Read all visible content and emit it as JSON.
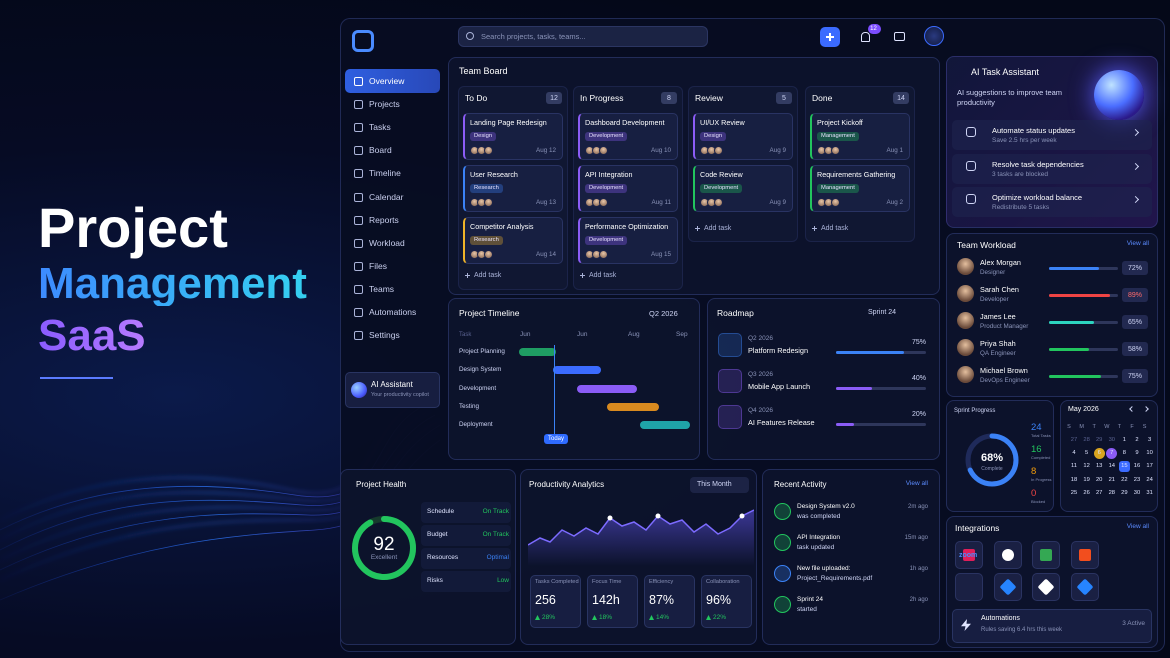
{
  "hero": {
    "line1": "Project",
    "line2": "Management",
    "line3": "SaaS"
  },
  "sidebar": {
    "nav": [
      "Overview",
      "Projects",
      "Tasks",
      "Board",
      "Timeline",
      "Calendar",
      "Reports",
      "Workload",
      "Files",
      "Teams",
      "Automations",
      "Settings"
    ],
    "assistant": {
      "title": "AI Assistant",
      "subtitle": "Your productivity copilot"
    }
  },
  "topbar": {
    "search": "Search projects, tasks, teams...",
    "notifications": "12"
  },
  "board": {
    "title": "Team Board",
    "columns": [
      {
        "title": "To Do",
        "count": "12",
        "add": "Add task",
        "cards": [
          {
            "title": "Landing Page Redesign",
            "tag": "Design",
            "date": "Aug 12",
            "color": "#8b5cf6"
          },
          {
            "title": "User Research",
            "tag": "Research",
            "date": "Aug 13",
            "color": "#3b82f6"
          },
          {
            "title": "Competitor Analysis",
            "tag": "Research",
            "date": "Aug 14",
            "color": "#f0b429"
          }
        ]
      },
      {
        "title": "In Progress",
        "count": "8",
        "add": "Add task",
        "cards": [
          {
            "title": "Dashboard Development",
            "tag": "Development",
            "date": "Aug 10",
            "color": "#8b5cf6"
          },
          {
            "title": "API Integration",
            "tag": "Development",
            "date": "Aug 11",
            "color": "#8b5cf6"
          },
          {
            "title": "Performance Optimization",
            "tag": "Development",
            "date": "Aug 15",
            "color": "#8b5cf6"
          }
        ]
      },
      {
        "title": "Review",
        "count": "5",
        "add": "Add task",
        "cards": [
          {
            "title": "UI/UX Review",
            "tag": "Design",
            "date": "Aug 9",
            "color": "#8b5cf6"
          },
          {
            "title": "Code Review",
            "tag": "Development",
            "date": "Aug 9",
            "color": "#22c55e"
          }
        ]
      },
      {
        "title": "Done",
        "count": "14",
        "add": "Add task",
        "cards": [
          {
            "title": "Project Kickoff",
            "tag": "Management",
            "date": "Aug 1",
            "color": "#22c55e"
          },
          {
            "title": "Requirements Gathering",
            "tag": "Management",
            "date": "Aug 2",
            "color": "#22c55e"
          }
        ]
      }
    ]
  },
  "timeline": {
    "title": "Project Timeline",
    "period": "Q2 2026",
    "task_header": "Task",
    "months": [
      "Jun",
      "Jun",
      "Aug",
      "Sep"
    ],
    "rows": [
      "Project Planning",
      "Design System",
      "Development",
      "Testing",
      "Deployment"
    ],
    "today": "Today"
  },
  "roadmap": {
    "title": "Roadmap",
    "sprint": "Sprint 24",
    "items": [
      {
        "quarter": "Q2 2026",
        "name": "Platform Redesign",
        "progress": "75%",
        "color": "#3b82f6"
      },
      {
        "quarter": "Q3 2026",
        "name": "Mobile App Launch",
        "progress": "40%",
        "color": "#8b5cf6"
      },
      {
        "quarter": "Q4 2026",
        "name": "AI Features Release",
        "progress": "20%",
        "color": "#8b5cf6"
      }
    ]
  },
  "ai": {
    "title": "AI Task Assistant",
    "subtitle": "AI suggestions to improve team productivity",
    "items": [
      {
        "title": "Automate status updates",
        "detail": "Save 2.5 hrs per week"
      },
      {
        "title": "Resolve task dependencies",
        "detail": "3 tasks are blocked"
      },
      {
        "title": "Optimize workload balance",
        "detail": "Redistribute 5 tasks"
      }
    ]
  },
  "workload": {
    "title": "Team Workload",
    "view_all": "View all",
    "members": [
      {
        "name": "Alex Morgan",
        "role": "Designer",
        "load": "72%",
        "color": "#3b82f6"
      },
      {
        "name": "Sarah Chen",
        "role": "Developer",
        "load": "89%",
        "color": "#ef4444"
      },
      {
        "name": "James Lee",
        "role": "Product Manager",
        "load": "65%",
        "color": "#2dd4bf"
      },
      {
        "name": "Priya Shah",
        "role": "QA Engineer",
        "load": "58%",
        "color": "#22c55e"
      },
      {
        "name": "Michael Brown",
        "role": "DevOps Engineer",
        "load": "75%",
        "color": "#22c55e"
      }
    ]
  },
  "sprint": {
    "title": "Sprint Progress",
    "percent": "68%",
    "label": "Complete",
    "stats": [
      {
        "value": "24",
        "label": "Total Tasks",
        "color": "#3b82f6"
      },
      {
        "value": "16",
        "label": "Completed",
        "color": "#22c55e"
      },
      {
        "value": "8",
        "label": "In Progress",
        "color": "#f59e0b"
      },
      {
        "value": "0",
        "label": "Blocked",
        "color": "#ef4444"
      }
    ]
  },
  "calendar": {
    "month": "May 2026",
    "weekdays": [
      "S",
      "M",
      "T",
      "W",
      "T",
      "F",
      "S"
    ],
    "days": [
      [
        "27",
        "28",
        "29",
        "30",
        "1",
        "2",
        "3"
      ],
      [
        "4",
        "5",
        "6",
        "7",
        "8",
        "9",
        "10"
      ],
      [
        "11",
        "12",
        "13",
        "14",
        "15",
        "16",
        "17"
      ],
      [
        "18",
        "19",
        "20",
        "21",
        "22",
        "23",
        "24"
      ],
      [
        "25",
        "26",
        "27",
        "28",
        "29",
        "30",
        "31"
      ]
    ]
  },
  "integrations": {
    "title": "Integrations",
    "view_all": "View all",
    "zoom": "zoom",
    "automations": {
      "title": "Automations",
      "detail": "Rules saving 6.4 hrs this week",
      "status": "3 Active"
    }
  },
  "health": {
    "title": "Project Health",
    "score": 92,
    "label": "Excellent",
    "rows": [
      {
        "label": "Schedule",
        "status": "On Track",
        "color": "#22c55e"
      },
      {
        "label": "Budget",
        "status": "On Track",
        "color": "#22c55e"
      },
      {
        "label": "Resources",
        "status": "Optimal",
        "color": "#3b82f6"
      },
      {
        "label": "Risks",
        "status": "Low",
        "color": "#22c55e"
      }
    ]
  },
  "analytics": {
    "title": "Productivity Analytics",
    "period": "This Month",
    "stats": [
      {
        "label": "Tasks Completed",
        "value": "256",
        "delta": "28%"
      },
      {
        "label": "Focus Time",
        "value": "142h",
        "delta": "18%"
      },
      {
        "label": "Efficiency",
        "value": "87%",
        "delta": "14%"
      },
      {
        "label": "Collaboration",
        "value": "96%",
        "delta": "22%"
      }
    ]
  },
  "activity": {
    "title": "Recent Activity",
    "view_all": "View all",
    "items": [
      {
        "title": "Design System v2.0",
        "detail": "was completed",
        "time": "2m ago",
        "color": "#22c55e"
      },
      {
        "title": "API Integration",
        "detail": "task updated",
        "time": "15m ago",
        "color": "#22c55e"
      },
      {
        "title": "New file uploaded:",
        "detail": "Project_Requirements.pdf",
        "time": "1h ago",
        "color": "#3b82f6"
      },
      {
        "title": "Sprint 24",
        "detail": "started",
        "time": "2h ago",
        "color": "#22c55e"
      }
    ]
  }
}
